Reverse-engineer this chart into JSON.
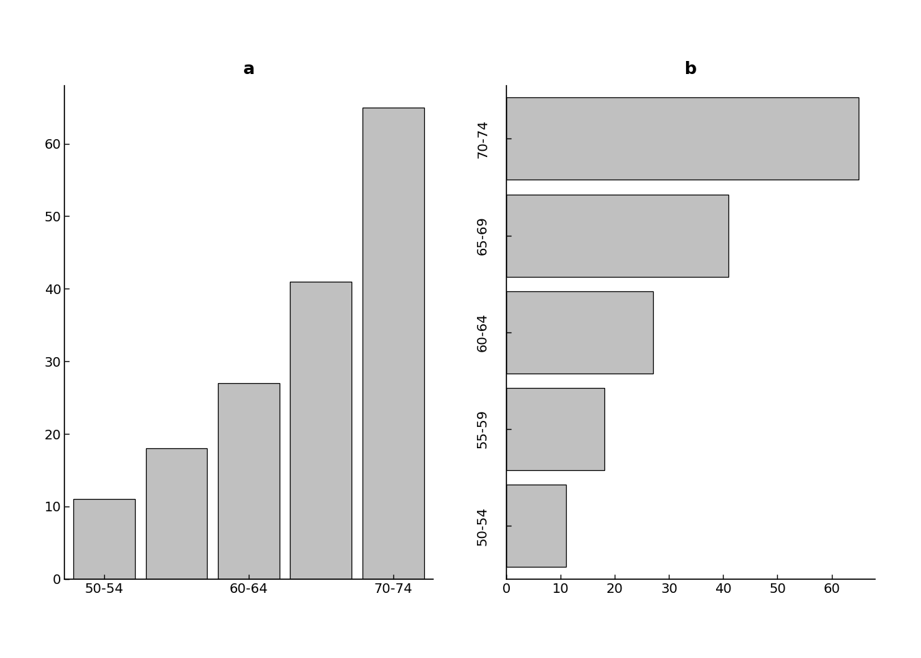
{
  "categories": [
    "50-54",
    "55-59",
    "60-64",
    "65-69",
    "70-74"
  ],
  "values": [
    11,
    18,
    27,
    41,
    65
  ],
  "bar_color": "#c0c0c0",
  "bar_edge_color": "#000000",
  "title_a": "a",
  "title_b": "b",
  "ylim_a": [
    0,
    68
  ],
  "yticks_a": [
    0,
    10,
    20,
    30,
    40,
    50,
    60
  ],
  "xlim_b": [
    0,
    68
  ],
  "xticks_b": [
    0,
    10,
    20,
    30,
    40,
    50,
    60
  ],
  "xtick_labels_a": [
    "50-54",
    "60-64",
    "70-74"
  ],
  "background_color": "#ffffff",
  "title_fontsize": 18,
  "tick_fontsize": 14
}
